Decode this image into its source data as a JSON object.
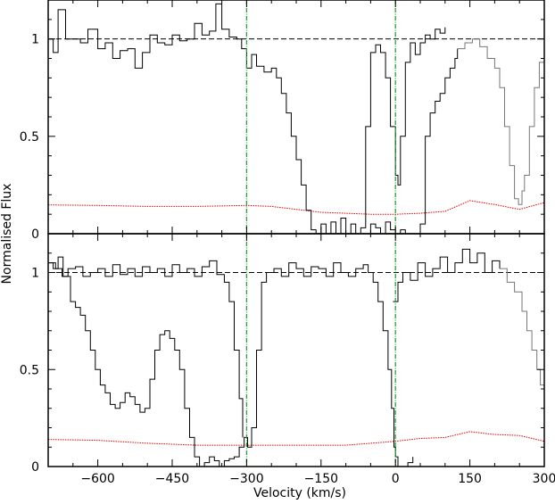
{
  "chart_data": {
    "type": "line",
    "xlabel": "Velocity (km/s)",
    "ylabel": "Normalised Flux",
    "xlim": [
      -700,
      300
    ],
    "x_ticks": [
      -600,
      -450,
      -300,
      -150,
      0,
      150,
      300
    ],
    "x_tick_labels": [
      "−600",
      "−450",
      "−300",
      "−150",
      "0",
      "150",
      "300"
    ],
    "vertical_markers": [
      -300,
      0
    ],
    "continuum_level": 1.0,
    "panels": [
      {
        "name": "top",
        "ylim": [
          0,
          1.2
        ],
        "y_ticks": [
          0,
          0.5,
          1
        ],
        "y_tick_labels": [
          "0",
          "0.5",
          "1"
        ],
        "flux_solid": [
          [
            -700,
            1.0
          ],
          [
            -690,
            0.93
          ],
          [
            -680,
            1.15
          ],
          [
            -665,
            1.0
          ],
          [
            -650,
            1.0
          ],
          [
            -635,
            0.98
          ],
          [
            -620,
            1.05
          ],
          [
            -600,
            0.95
          ],
          [
            -585,
            0.98
          ],
          [
            -570,
            0.9
          ],
          [
            -555,
            0.94
          ],
          [
            -540,
            0.95
          ],
          [
            -525,
            0.85
          ],
          [
            -510,
            0.93
          ],
          [
            -495,
            1.02
          ],
          [
            -480,
            0.98
          ],
          [
            -465,
            0.97
          ],
          [
            -450,
            1.02
          ],
          [
            -435,
            0.99
          ],
          [
            -420,
            1.0
          ],
          [
            -405,
            1.08
          ],
          [
            -390,
            1.02
          ],
          [
            -375,
            1.04
          ],
          [
            -362,
            1.18
          ],
          [
            -350,
            1.05
          ],
          [
            -335,
            1.01
          ],
          [
            -320,
            1.0
          ],
          [
            -310,
            0.95
          ],
          [
            -300,
            0.85
          ],
          [
            -290,
            0.92
          ],
          [
            -280,
            0.86
          ],
          [
            -265,
            0.83
          ],
          [
            -250,
            0.85
          ],
          [
            -240,
            0.8
          ],
          [
            -230,
            0.72
          ],
          [
            -220,
            0.62
          ],
          [
            -210,
            0.5
          ],
          [
            -200,
            0.38
          ],
          [
            -190,
            0.25
          ],
          [
            -180,
            0.12
          ],
          [
            -170,
            0.02
          ],
          [
            -160,
            0.0
          ],
          [
            -150,
            0.05
          ],
          [
            -140,
            0.0
          ],
          [
            -130,
            0.06
          ],
          [
            -120,
            0.0
          ],
          [
            -110,
            0.08
          ],
          [
            -100,
            0.0
          ],
          [
            -90,
            0.05
          ],
          [
            -80,
            0.0
          ],
          [
            -70,
            0.03
          ],
          [
            -60,
            0.55
          ],
          [
            -50,
            0.93
          ],
          [
            -40,
            0.97
          ],
          [
            -30,
            0.93
          ],
          [
            -20,
            0.8
          ],
          [
            -10,
            0.55
          ],
          [
            0,
            0.3
          ],
          [
            5,
            0.25
          ],
          [
            10,
            0.5
          ],
          [
            20,
            0.88
          ],
          [
            30,
            0.98
          ],
          [
            40,
            0.92
          ],
          [
            50,
            0.98
          ],
          [
            60,
            1.02
          ],
          [
            70,
            1.0
          ],
          [
            80,
            1.05
          ],
          [
            90,
            1.03
          ],
          [
            100,
            1.06
          ]
        ],
        "flux_solid_low": [
          [
            -60,
            0.0
          ],
          [
            -50,
            0.05
          ],
          [
            -40,
            0.03
          ],
          [
            -30,
            0.0
          ],
          [
            -20,
            0.06
          ],
          [
            -10,
            0.02
          ],
          [
            0,
            0.0
          ],
          [
            10,
            0.02
          ],
          [
            20,
            0.0
          ],
          [
            30,
            0.0
          ],
          [
            40,
            0.0
          ],
          [
            50,
            0.05
          ],
          [
            60,
            0.5
          ],
          [
            70,
            0.62
          ],
          [
            80,
            0.68
          ],
          [
            90,
            0.72
          ],
          [
            100,
            0.8
          ],
          [
            110,
            0.85
          ],
          [
            120,
            0.9
          ],
          [
            125,
            0.95
          ]
        ],
        "flux_grey": [
          [
            125,
            0.95
          ],
          [
            140,
            0.98
          ],
          [
            155,
            1.0
          ],
          [
            170,
            0.96
          ],
          [
            185,
            0.9
          ],
          [
            200,
            0.85
          ],
          [
            210,
            0.75
          ],
          [
            220,
            0.55
          ],
          [
            230,
            0.35
          ],
          [
            240,
            0.18
          ],
          [
            248,
            0.15
          ],
          [
            255,
            0.22
          ],
          [
            260,
            0.3
          ],
          [
            270,
            0.55
          ],
          [
            280,
            0.75
          ],
          [
            290,
            0.88
          ],
          [
            300,
            0.9
          ]
        ],
        "error": [
          [
            -700,
            0.148
          ],
          [
            -600,
            0.145
          ],
          [
            -500,
            0.14
          ],
          [
            -400,
            0.14
          ],
          [
            -300,
            0.145
          ],
          [
            -250,
            0.14
          ],
          [
            -200,
            0.125
          ],
          [
            -150,
            0.11
          ],
          [
            -100,
            0.105
          ],
          [
            -50,
            0.1
          ],
          [
            0,
            0.1
          ],
          [
            50,
            0.105
          ],
          [
            100,
            0.115
          ],
          [
            150,
            0.17
          ],
          [
            200,
            0.15
          ],
          [
            250,
            0.125
          ],
          [
            300,
            0.16
          ]
        ]
      },
      {
        "name": "bottom",
        "ylim": [
          0,
          1.2
        ],
        "y_ticks": [
          0,
          0.5,
          1
        ],
        "y_tick_labels": [
          "0",
          "0.5",
          "1"
        ],
        "flux_solid": [
          [
            -700,
            1.05
          ],
          [
            -690,
            1.02
          ],
          [
            -680,
            1.08
          ],
          [
            -670,
            0.98
          ],
          [
            -655,
            0.85
          ],
          [
            -645,
            0.82
          ],
          [
            -635,
            0.78
          ],
          [
            -625,
            0.7
          ],
          [
            -615,
            0.6
          ],
          [
            -605,
            0.5
          ],
          [
            -595,
            0.42
          ],
          [
            -585,
            0.38
          ],
          [
            -575,
            0.32
          ],
          [
            -565,
            0.3
          ],
          [
            -555,
            0.33
          ],
          [
            -545,
            0.38
          ],
          [
            -535,
            0.36
          ],
          [
            -525,
            0.32
          ],
          [
            -515,
            0.28
          ],
          [
            -505,
            0.3
          ],
          [
            -495,
            0.45
          ],
          [
            -485,
            0.6
          ],
          [
            -475,
            0.68
          ],
          [
            -465,
            0.7
          ],
          [
            -455,
            0.66
          ],
          [
            -445,
            0.6
          ],
          [
            -435,
            0.5
          ],
          [
            -425,
            0.3
          ],
          [
            -415,
            0.15
          ],
          [
            -405,
            0.05
          ],
          [
            -395,
            0.0
          ],
          [
            -385,
            0.02
          ],
          [
            -375,
            0.05
          ],
          [
            -365,
            0.03
          ],
          [
            -355,
            0.0
          ],
          [
            -345,
            0.03
          ],
          [
            -335,
            0.04
          ],
          [
            -325,
            0.05
          ],
          [
            -315,
            0.1
          ],
          [
            -305,
            0.15
          ],
          [
            -298,
            0.1
          ],
          [
            -290,
            0.2
          ],
          [
            -280,
            0.6
          ],
          [
            -270,
            0.95
          ],
          [
            -260,
            1.0
          ],
          [
            -245,
            1.02
          ],
          [
            -230,
            0.98
          ],
          [
            -215,
            1.05
          ],
          [
            -200,
            1.02
          ],
          [
            -185,
            0.98
          ],
          [
            -170,
            1.03
          ],
          [
            -155,
            1.02
          ],
          [
            -140,
            0.98
          ],
          [
            -125,
            1.05
          ],
          [
            -110,
            1.0
          ],
          [
            -95,
            0.98
          ],
          [
            -80,
            1.02
          ],
          [
            -65,
            1.04
          ],
          [
            -55,
            1.0
          ],
          [
            -45,
            0.95
          ],
          [
            -35,
            0.85
          ],
          [
            -25,
            0.7
          ],
          [
            -15,
            0.5
          ],
          [
            -8,
            0.3
          ],
          [
            -3,
            0.1
          ],
          [
            0,
            0.05
          ],
          [
            5,
            0.0
          ],
          [
            15,
            0.0
          ],
          [
            25,
            0.02
          ],
          [
            35,
            0.05
          ]
        ],
        "flux_solid_high": [
          [
            -700,
            1.05
          ],
          [
            -685,
            1.02
          ],
          [
            -672,
            0.98
          ],
          [
            -660,
            1.02
          ],
          [
            -645,
            1.03
          ],
          [
            -630,
            0.98
          ],
          [
            -615,
            1.0
          ],
          [
            -600,
            1.02
          ],
          [
            -585,
            0.98
          ],
          [
            -570,
            1.04
          ],
          [
            -555,
            0.99
          ],
          [
            -540,
            1.02
          ],
          [
            -525,
            0.98
          ],
          [
            -510,
            1.03
          ],
          [
            -495,
            1.0
          ],
          [
            -480,
            1.02
          ],
          [
            -465,
            0.98
          ],
          [
            -450,
            1.04
          ],
          [
            -435,
            1.0
          ],
          [
            -420,
            1.02
          ],
          [
            -405,
            0.98
          ],
          [
            -390,
            1.03
          ],
          [
            -375,
            1.06
          ],
          [
            -360,
            0.99
          ],
          [
            -345,
            0.95
          ],
          [
            -335,
            0.85
          ],
          [
            -325,
            0.6
          ],
          [
            -315,
            0.35
          ],
          [
            -308,
            0.15
          ]
        ],
        "flux_solid_right": [
          [
            -5,
            0.85
          ],
          [
            5,
            0.95
          ],
          [
            15,
            1.0
          ],
          [
            30,
            0.96
          ],
          [
            45,
            1.05
          ],
          [
            60,
            0.98
          ],
          [
            75,
            1.02
          ],
          [
            90,
            1.08
          ],
          [
            105,
            1.0
          ],
          [
            120,
            1.05
          ],
          [
            135,
            1.12
          ],
          [
            150,
            1.05
          ],
          [
            165,
            1.1
          ],
          [
            180,
            1.0
          ],
          [
            195,
            1.06
          ],
          [
            210,
            1.02
          ]
        ],
        "flux_grey": [
          [
            210,
            1.02
          ],
          [
            225,
            0.95
          ],
          [
            240,
            0.9
          ],
          [
            255,
            0.8
          ],
          [
            265,
            0.7
          ],
          [
            275,
            0.6
          ],
          [
            285,
            0.5
          ],
          [
            292,
            0.42
          ],
          [
            300,
            0.45
          ]
        ],
        "error": [
          [
            -700,
            0.14
          ],
          [
            -600,
            0.135
          ],
          [
            -500,
            0.12
          ],
          [
            -400,
            0.11
          ],
          [
            -300,
            0.11
          ],
          [
            -250,
            0.11
          ],
          [
            -200,
            0.11
          ],
          [
            -150,
            0.11
          ],
          [
            -100,
            0.11
          ],
          [
            -50,
            0.12
          ],
          [
            0,
            0.13
          ],
          [
            50,
            0.145
          ],
          [
            100,
            0.15
          ],
          [
            150,
            0.18
          ],
          [
            200,
            0.165
          ],
          [
            250,
            0.16
          ],
          [
            300,
            0.13
          ]
        ]
      }
    ],
    "colors": {
      "flux": "#000000",
      "flux_grey": "#777777",
      "error": "#e00000",
      "marker": "#2e9d3c",
      "continuum": "#000000"
    }
  }
}
